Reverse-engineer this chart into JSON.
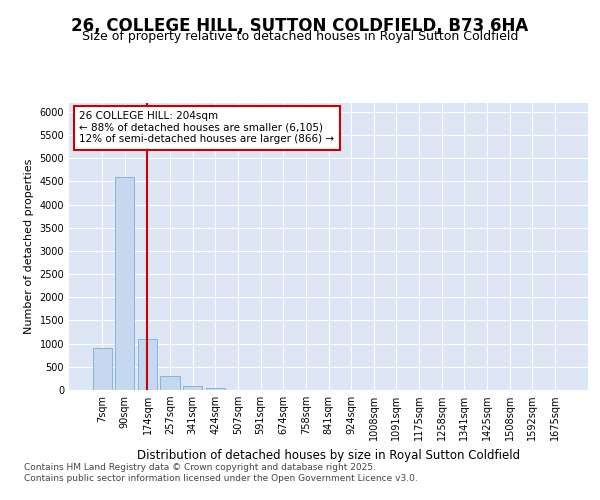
{
  "title": "26, COLLEGE HILL, SUTTON COLDFIELD, B73 6HA",
  "subtitle": "Size of property relative to detached houses in Royal Sutton Coldfield",
  "xlabel": "Distribution of detached houses by size in Royal Sutton Coldfield",
  "ylabel": "Number of detached properties",
  "categories": [
    "7sqm",
    "90sqm",
    "174sqm",
    "257sqm",
    "341sqm",
    "424sqm",
    "507sqm",
    "591sqm",
    "674sqm",
    "758sqm",
    "841sqm",
    "924sqm",
    "1008sqm",
    "1091sqm",
    "1175sqm",
    "1258sqm",
    "1341sqm",
    "1425sqm",
    "1508sqm",
    "1592sqm",
    "1675sqm"
  ],
  "values": [
    900,
    4600,
    1090,
    295,
    85,
    50,
    0,
    0,
    0,
    0,
    0,
    0,
    0,
    0,
    0,
    0,
    0,
    0,
    0,
    0,
    0
  ],
  "bar_color": "#c5d8f0",
  "bar_edgecolor": "#7bafd4",
  "vline_x": 2.0,
  "vline_color": "#cc0000",
  "annotation_text": "26 COLLEGE HILL: 204sqm\n← 88% of detached houses are smaller (6,105)\n12% of semi-detached houses are larger (866) →",
  "annotation_box_facecolor": "#ffffff",
  "annotation_box_edgecolor": "#cc0000",
  "fig_background": "#ffffff",
  "plot_background": "#dce6f5",
  "grid_color": "#ffffff",
  "ylim": [
    0,
    6200
  ],
  "yticks": [
    0,
    500,
    1000,
    1500,
    2000,
    2500,
    3000,
    3500,
    4000,
    4500,
    5000,
    5500,
    6000
  ],
  "footer_line1": "Contains HM Land Registry data © Crown copyright and database right 2025.",
  "footer_line2": "Contains public sector information licensed under the Open Government Licence v3.0.",
  "title_fontsize": 12,
  "subtitle_fontsize": 9,
  "tick_fontsize": 7,
  "ylabel_fontsize": 8,
  "xlabel_fontsize": 8.5,
  "footer_fontsize": 6.5
}
